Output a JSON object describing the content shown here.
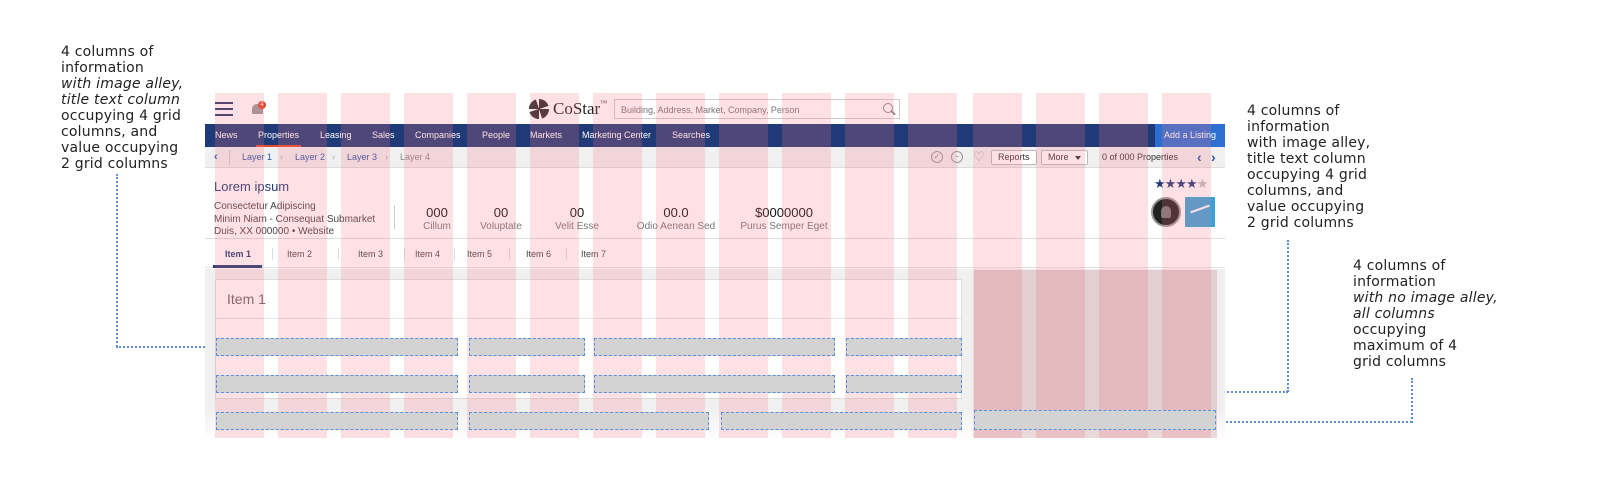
{
  "annotations": {
    "left": [
      "4 columns of",
      "information",
      "with image alley,",
      "title text column",
      "occupying 4 grid",
      "columns, and",
      "value occupying",
      "2 grid columns"
    ],
    "right": [
      "4 columns of",
      "information",
      "with image alley,",
      "title text column",
      "occupying 4 grid",
      "columns, and",
      "value occupying",
      "2 grid columns"
    ],
    "far_right": [
      "4 columns of",
      "information",
      "with no image alley,",
      "all columns",
      "occupying",
      "maximum of 4",
      "grid columns"
    ]
  },
  "topbar": {
    "notification_count": "4",
    "logo_text": "CoStar",
    "logo_tm": "™",
    "search_placeholder": "Building, Address, Market, Company, Person"
  },
  "nav": {
    "items": [
      "News",
      "Properties",
      "Leasing",
      "Sales",
      "Companies",
      "People",
      "Markets",
      "Marketing Center",
      "Searches"
    ],
    "active": "Properties",
    "add_listing": "Add a Listing"
  },
  "breadcrumb": {
    "items": [
      "Layer 1",
      "Layer 2",
      "Layer 3",
      "Layer 4"
    ],
    "reports_label": "Reports",
    "more_label": "More",
    "page_count": "0 of 000 Properties"
  },
  "property": {
    "title": "Lorem ipsum",
    "line1": "Consectetur Adipiscing",
    "line2": "Minim Niam - Consequat Submarket",
    "line3": "Duis, XX 000000 • Website",
    "rating": 4,
    "rating_max": 5,
    "stats": [
      {
        "value": "000",
        "label": "Cillum"
      },
      {
        "value": "00",
        "label": "Voluptate"
      },
      {
        "value": "00",
        "label": "Velit Esse"
      },
      {
        "value": "00.0",
        "label": "Odio Aenean Sed"
      },
      {
        "value": "$0000000",
        "label": "Purus Semper Eget"
      }
    ]
  },
  "tabs": [
    "Item 1",
    "Item 2",
    "Item 3",
    "Item 4",
    "Item 5",
    "Item 6",
    "Item 7"
  ],
  "active_tab": "Item 1",
  "card": {
    "title": "Item 1"
  },
  "colors": {
    "nav_bg": "#1f3a76",
    "accent": "#e04a2f",
    "add_listing_bg": "#2c6fd1",
    "grid_overlay": "#fa7882",
    "annotation_line": "#5b8fd9"
  }
}
